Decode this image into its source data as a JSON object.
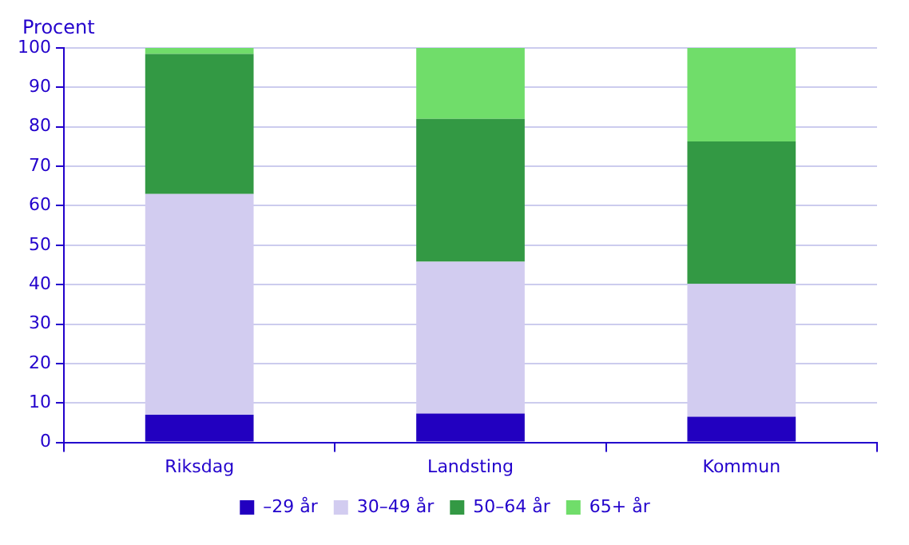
{
  "chart_data": {
    "type": "bar",
    "stacked": true,
    "ylabel": "Procent",
    "categories": [
      "Riksdag",
      "Landsting",
      "Kommun"
    ],
    "series": [
      {
        "name": "–29 år",
        "color": "#2200c0",
        "values": [
          7,
          7.3,
          6.5
        ]
      },
      {
        "name": "30–49 år",
        "color": "#d2ccf0",
        "values": [
          56,
          38.5,
          33.7
        ]
      },
      {
        "name": "50–64 år",
        "color": "#339944",
        "values": [
          35.5,
          36.2,
          36.1
        ]
      },
      {
        "name": "65+ år",
        "color": "#70dd6a",
        "values": [
          1.5,
          18,
          23.7
        ]
      }
    ],
    "ylim": [
      0,
      100
    ],
    "yticks": [
      0,
      10,
      20,
      30,
      40,
      50,
      60,
      70,
      80,
      90,
      100
    ],
    "grid": "y",
    "legend": "bottom"
  }
}
